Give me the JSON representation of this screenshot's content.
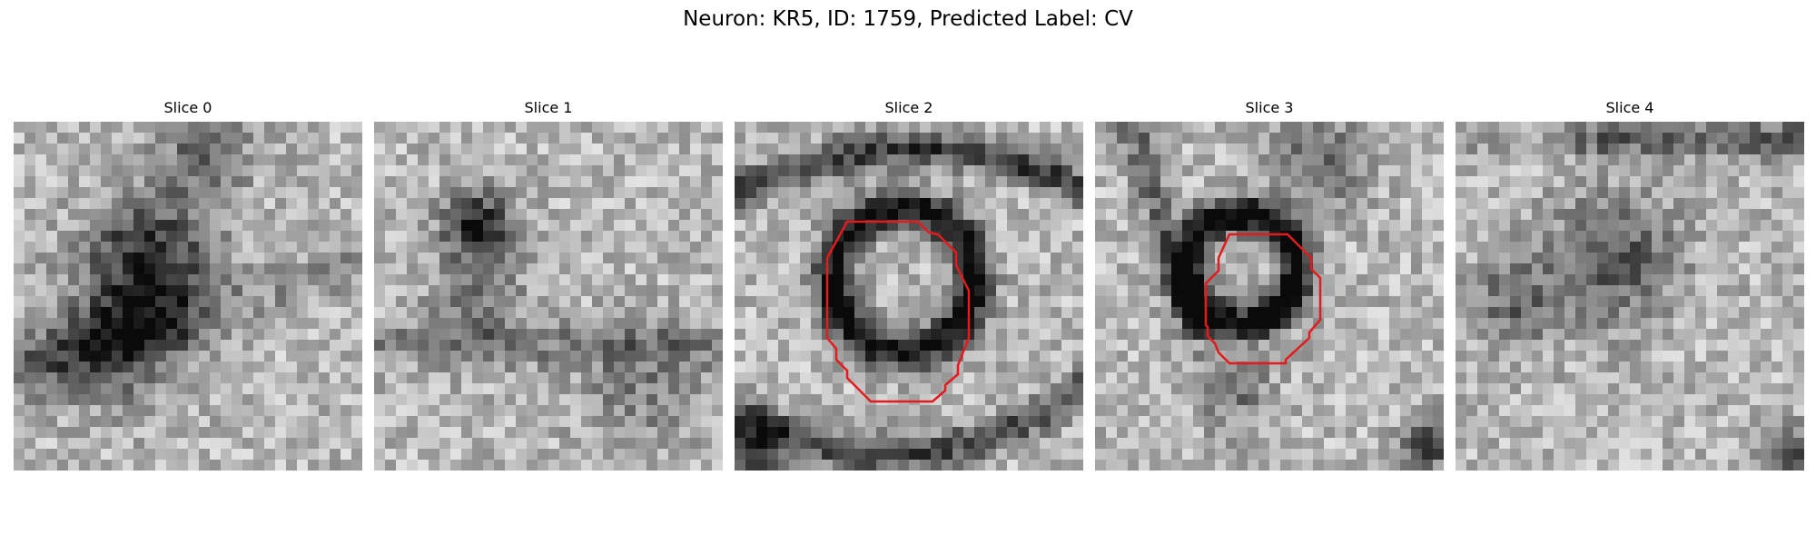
{
  "figure": {
    "title": "Neuron: KR5, ID: 1759, Predicted Label: CV"
  },
  "panels": [
    {
      "title": "Slice 0",
      "seed": 11,
      "has_contour": false,
      "darkness": "diffuse-center-band"
    },
    {
      "title": "Slice 1",
      "seed": 23,
      "has_contour": false,
      "darkness": "upper-left-spots"
    },
    {
      "title": "Slice 2",
      "seed": 37,
      "has_contour": true,
      "darkness": "ring-with-arcs"
    },
    {
      "title": "Slice 3",
      "seed": 53,
      "has_contour": true,
      "darkness": "ring-small"
    },
    {
      "title": "Slice 4",
      "seed": 71,
      "has_contour": false,
      "darkness": "faint-center-blob"
    }
  ],
  "colors": {
    "contour": "#e41a1c",
    "background": "#ffffff"
  }
}
